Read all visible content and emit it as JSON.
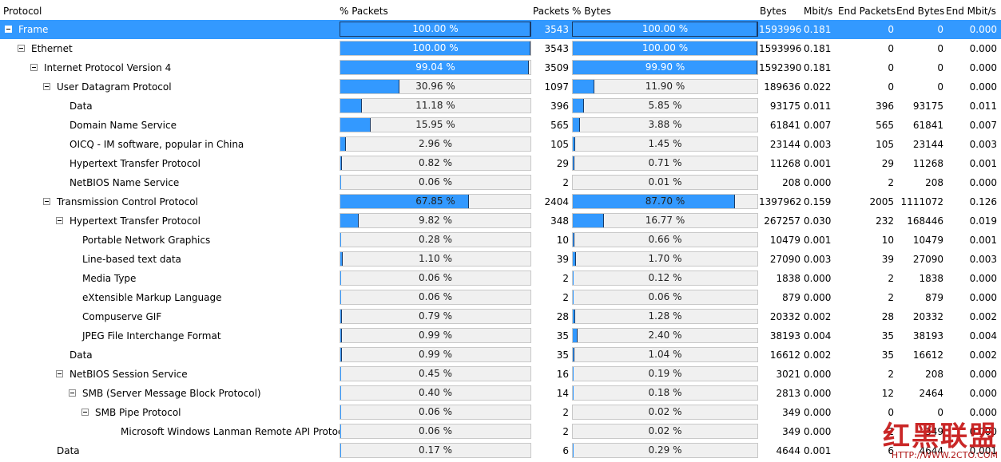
{
  "columns": {
    "protocol": "Protocol",
    "pct_packets": "% Packets",
    "packets": "Packets",
    "pct_bytes": "% Bytes",
    "bytes": "Bytes",
    "mbit": "Mbit/s",
    "end_packets": "End Packets",
    "end_bytes": "End Bytes",
    "end_mbit": "End Mbit/s"
  },
  "rows": [
    {
      "name": "Frame",
      "level": 0,
      "toggle": true,
      "selected": true,
      "pct_packets": "100.00 %",
      "pct_packets_value": 100.0,
      "packets": "3543",
      "pct_bytes": "100.00 %",
      "pct_bytes_value": 100.0,
      "bytes": "1593996",
      "mbit": "0.181",
      "end_packets": "0",
      "end_bytes": "0",
      "end_mbit": "0.000"
    },
    {
      "name": "Ethernet",
      "level": 1,
      "toggle": true,
      "pct_packets": "100.00 %",
      "pct_packets_value": 100.0,
      "packets": "3543",
      "pct_bytes": "100.00 %",
      "pct_bytes_value": 100.0,
      "bytes": "1593996",
      "mbit": "0.181",
      "end_packets": "0",
      "end_bytes": "0",
      "end_mbit": "0.000"
    },
    {
      "name": "Internet Protocol Version 4",
      "level": 2,
      "toggle": true,
      "pct_packets": "99.04 %",
      "pct_packets_value": 99.04,
      "packets": "3509",
      "pct_bytes": "99.90 %",
      "pct_bytes_value": 99.9,
      "bytes": "1592390",
      "mbit": "0.181",
      "end_packets": "0",
      "end_bytes": "0",
      "end_mbit": "0.000"
    },
    {
      "name": "User Datagram Protocol",
      "level": 3,
      "toggle": true,
      "pct_packets": "30.96 %",
      "pct_packets_value": 30.96,
      "packets": "1097",
      "pct_bytes": "11.90 %",
      "pct_bytes_value": 11.9,
      "bytes": "189636",
      "mbit": "0.022",
      "end_packets": "0",
      "end_bytes": "0",
      "end_mbit": "0.000"
    },
    {
      "name": "Data",
      "level": 4,
      "toggle": false,
      "pct_packets": "11.18 %",
      "pct_packets_value": 11.18,
      "packets": "396",
      "pct_bytes": "5.85 %",
      "pct_bytes_value": 5.85,
      "bytes": "93175",
      "mbit": "0.011",
      "end_packets": "396",
      "end_bytes": "93175",
      "end_mbit": "0.011"
    },
    {
      "name": "Domain Name Service",
      "level": 4,
      "toggle": false,
      "pct_packets": "15.95 %",
      "pct_packets_value": 15.95,
      "packets": "565",
      "pct_bytes": "3.88 %",
      "pct_bytes_value": 3.88,
      "bytes": "61841",
      "mbit": "0.007",
      "end_packets": "565",
      "end_bytes": "61841",
      "end_mbit": "0.007"
    },
    {
      "name": "OICQ - IM software, popular in China",
      "level": 4,
      "toggle": false,
      "pct_packets": "2.96 %",
      "pct_packets_value": 2.96,
      "packets": "105",
      "pct_bytes": "1.45 %",
      "pct_bytes_value": 1.45,
      "bytes": "23144",
      "mbit": "0.003",
      "end_packets": "105",
      "end_bytes": "23144",
      "end_mbit": "0.003"
    },
    {
      "name": "Hypertext Transfer Protocol",
      "level": 4,
      "toggle": false,
      "pct_packets": "0.82 %",
      "pct_packets_value": 0.82,
      "packets": "29",
      "pct_bytes": "0.71 %",
      "pct_bytes_value": 0.71,
      "bytes": "11268",
      "mbit": "0.001",
      "end_packets": "29",
      "end_bytes": "11268",
      "end_mbit": "0.001"
    },
    {
      "name": "NetBIOS Name Service",
      "level": 4,
      "toggle": false,
      "pct_packets": "0.06 %",
      "pct_packets_value": 0.06,
      "packets": "2",
      "pct_bytes": "0.01 %",
      "pct_bytes_value": 0.01,
      "bytes": "208",
      "mbit": "0.000",
      "end_packets": "2",
      "end_bytes": "208",
      "end_mbit": "0.000"
    },
    {
      "name": "Transmission Control Protocol",
      "level": 3,
      "toggle": true,
      "pct_packets": "67.85 %",
      "pct_packets_value": 67.85,
      "packets": "2404",
      "pct_bytes": "87.70 %",
      "pct_bytes_value": 87.7,
      "bytes": "1397962",
      "mbit": "0.159",
      "end_packets": "2005",
      "end_bytes": "1111072",
      "end_mbit": "0.126"
    },
    {
      "name": "Hypertext Transfer Protocol",
      "level": 4,
      "toggle": true,
      "pct_packets": "9.82 %",
      "pct_packets_value": 9.82,
      "packets": "348",
      "pct_bytes": "16.77 %",
      "pct_bytes_value": 16.77,
      "bytes": "267257",
      "mbit": "0.030",
      "end_packets": "232",
      "end_bytes": "168446",
      "end_mbit": "0.019"
    },
    {
      "name": "Portable Network Graphics",
      "level": 5,
      "toggle": false,
      "pct_packets": "0.28 %",
      "pct_packets_value": 0.28,
      "packets": "10",
      "pct_bytes": "0.66 %",
      "pct_bytes_value": 0.66,
      "bytes": "10479",
      "mbit": "0.001",
      "end_packets": "10",
      "end_bytes": "10479",
      "end_mbit": "0.001"
    },
    {
      "name": "Line-based text data",
      "level": 5,
      "toggle": false,
      "pct_packets": "1.10 %",
      "pct_packets_value": 1.1,
      "packets": "39",
      "pct_bytes": "1.70 %",
      "pct_bytes_value": 1.7,
      "bytes": "27090",
      "mbit": "0.003",
      "end_packets": "39",
      "end_bytes": "27090",
      "end_mbit": "0.003"
    },
    {
      "name": "Media Type",
      "level": 5,
      "toggle": false,
      "pct_packets": "0.06 %",
      "pct_packets_value": 0.06,
      "packets": "2",
      "pct_bytes": "0.12 %",
      "pct_bytes_value": 0.12,
      "bytes": "1838",
      "mbit": "0.000",
      "end_packets": "2",
      "end_bytes": "1838",
      "end_mbit": "0.000"
    },
    {
      "name": "eXtensible Markup Language",
      "level": 5,
      "toggle": false,
      "pct_packets": "0.06 %",
      "pct_packets_value": 0.06,
      "packets": "2",
      "pct_bytes": "0.06 %",
      "pct_bytes_value": 0.06,
      "bytes": "879",
      "mbit": "0.000",
      "end_packets": "2",
      "end_bytes": "879",
      "end_mbit": "0.000"
    },
    {
      "name": "Compuserve GIF",
      "level": 5,
      "toggle": false,
      "pct_packets": "0.79 %",
      "pct_packets_value": 0.79,
      "packets": "28",
      "pct_bytes": "1.28 %",
      "pct_bytes_value": 1.28,
      "bytes": "20332",
      "mbit": "0.002",
      "end_packets": "28",
      "end_bytes": "20332",
      "end_mbit": "0.002"
    },
    {
      "name": "JPEG File Interchange Format",
      "level": 5,
      "toggle": false,
      "pct_packets": "0.99 %",
      "pct_packets_value": 0.99,
      "packets": "35",
      "pct_bytes": "2.40 %",
      "pct_bytes_value": 2.4,
      "bytes": "38193",
      "mbit": "0.004",
      "end_packets": "35",
      "end_bytes": "38193",
      "end_mbit": "0.004"
    },
    {
      "name": "Data",
      "level": 4,
      "toggle": false,
      "pct_packets": "0.99 %",
      "pct_packets_value": 0.99,
      "packets": "35",
      "pct_bytes": "1.04 %",
      "pct_bytes_value": 1.04,
      "bytes": "16612",
      "mbit": "0.002",
      "end_packets": "35",
      "end_bytes": "16612",
      "end_mbit": "0.002"
    },
    {
      "name": "NetBIOS Session Service",
      "level": 4,
      "toggle": true,
      "pct_packets": "0.45 %",
      "pct_packets_value": 0.45,
      "packets": "16",
      "pct_bytes": "0.19 %",
      "pct_bytes_value": 0.19,
      "bytes": "3021",
      "mbit": "0.000",
      "end_packets": "2",
      "end_bytes": "208",
      "end_mbit": "0.000"
    },
    {
      "name": "SMB (Server Message Block Protocol)",
      "level": 5,
      "toggle": true,
      "pct_packets": "0.40 %",
      "pct_packets_value": 0.4,
      "packets": "14",
      "pct_bytes": "0.18 %",
      "pct_bytes_value": 0.18,
      "bytes": "2813",
      "mbit": "0.000",
      "end_packets": "12",
      "end_bytes": "2464",
      "end_mbit": "0.000"
    },
    {
      "name": "SMB Pipe Protocol",
      "level": 6,
      "toggle": true,
      "pct_packets": "0.06 %",
      "pct_packets_value": 0.06,
      "packets": "2",
      "pct_bytes": "0.02 %",
      "pct_bytes_value": 0.02,
      "bytes": "349",
      "mbit": "0.000",
      "end_packets": "0",
      "end_bytes": "0",
      "end_mbit": "0.000"
    },
    {
      "name": "Microsoft Windows Lanman Remote API Protocol",
      "level": 8,
      "toggle": false,
      "pct_packets": "0.06 %",
      "pct_packets_value": 0.06,
      "packets": "2",
      "pct_bytes": "0.02 %",
      "pct_bytes_value": 0.02,
      "bytes": "349",
      "mbit": "0.000",
      "end_packets": "2",
      "end_bytes": "349",
      "end_mbit": "0.000"
    },
    {
      "name": "Data",
      "level": 3,
      "toggle": false,
      "pct_packets": "0.17 %",
      "pct_packets_value": 0.17,
      "packets": "6",
      "pct_bytes": "0.29 %",
      "pct_bytes_value": 0.29,
      "bytes": "4644",
      "mbit": "0.001",
      "end_packets": "6",
      "end_bytes": "4644",
      "end_mbit": "0.001"
    }
  ],
  "watermark": {
    "text": "红黑联盟",
    "url": "HTTP://WWW.2CTO.COM"
  },
  "colors": {
    "selection": "#3399ff",
    "bar_fill": "#3399ff",
    "bar_track": "#f0f0f0",
    "watermark": "#c81c1c"
  }
}
